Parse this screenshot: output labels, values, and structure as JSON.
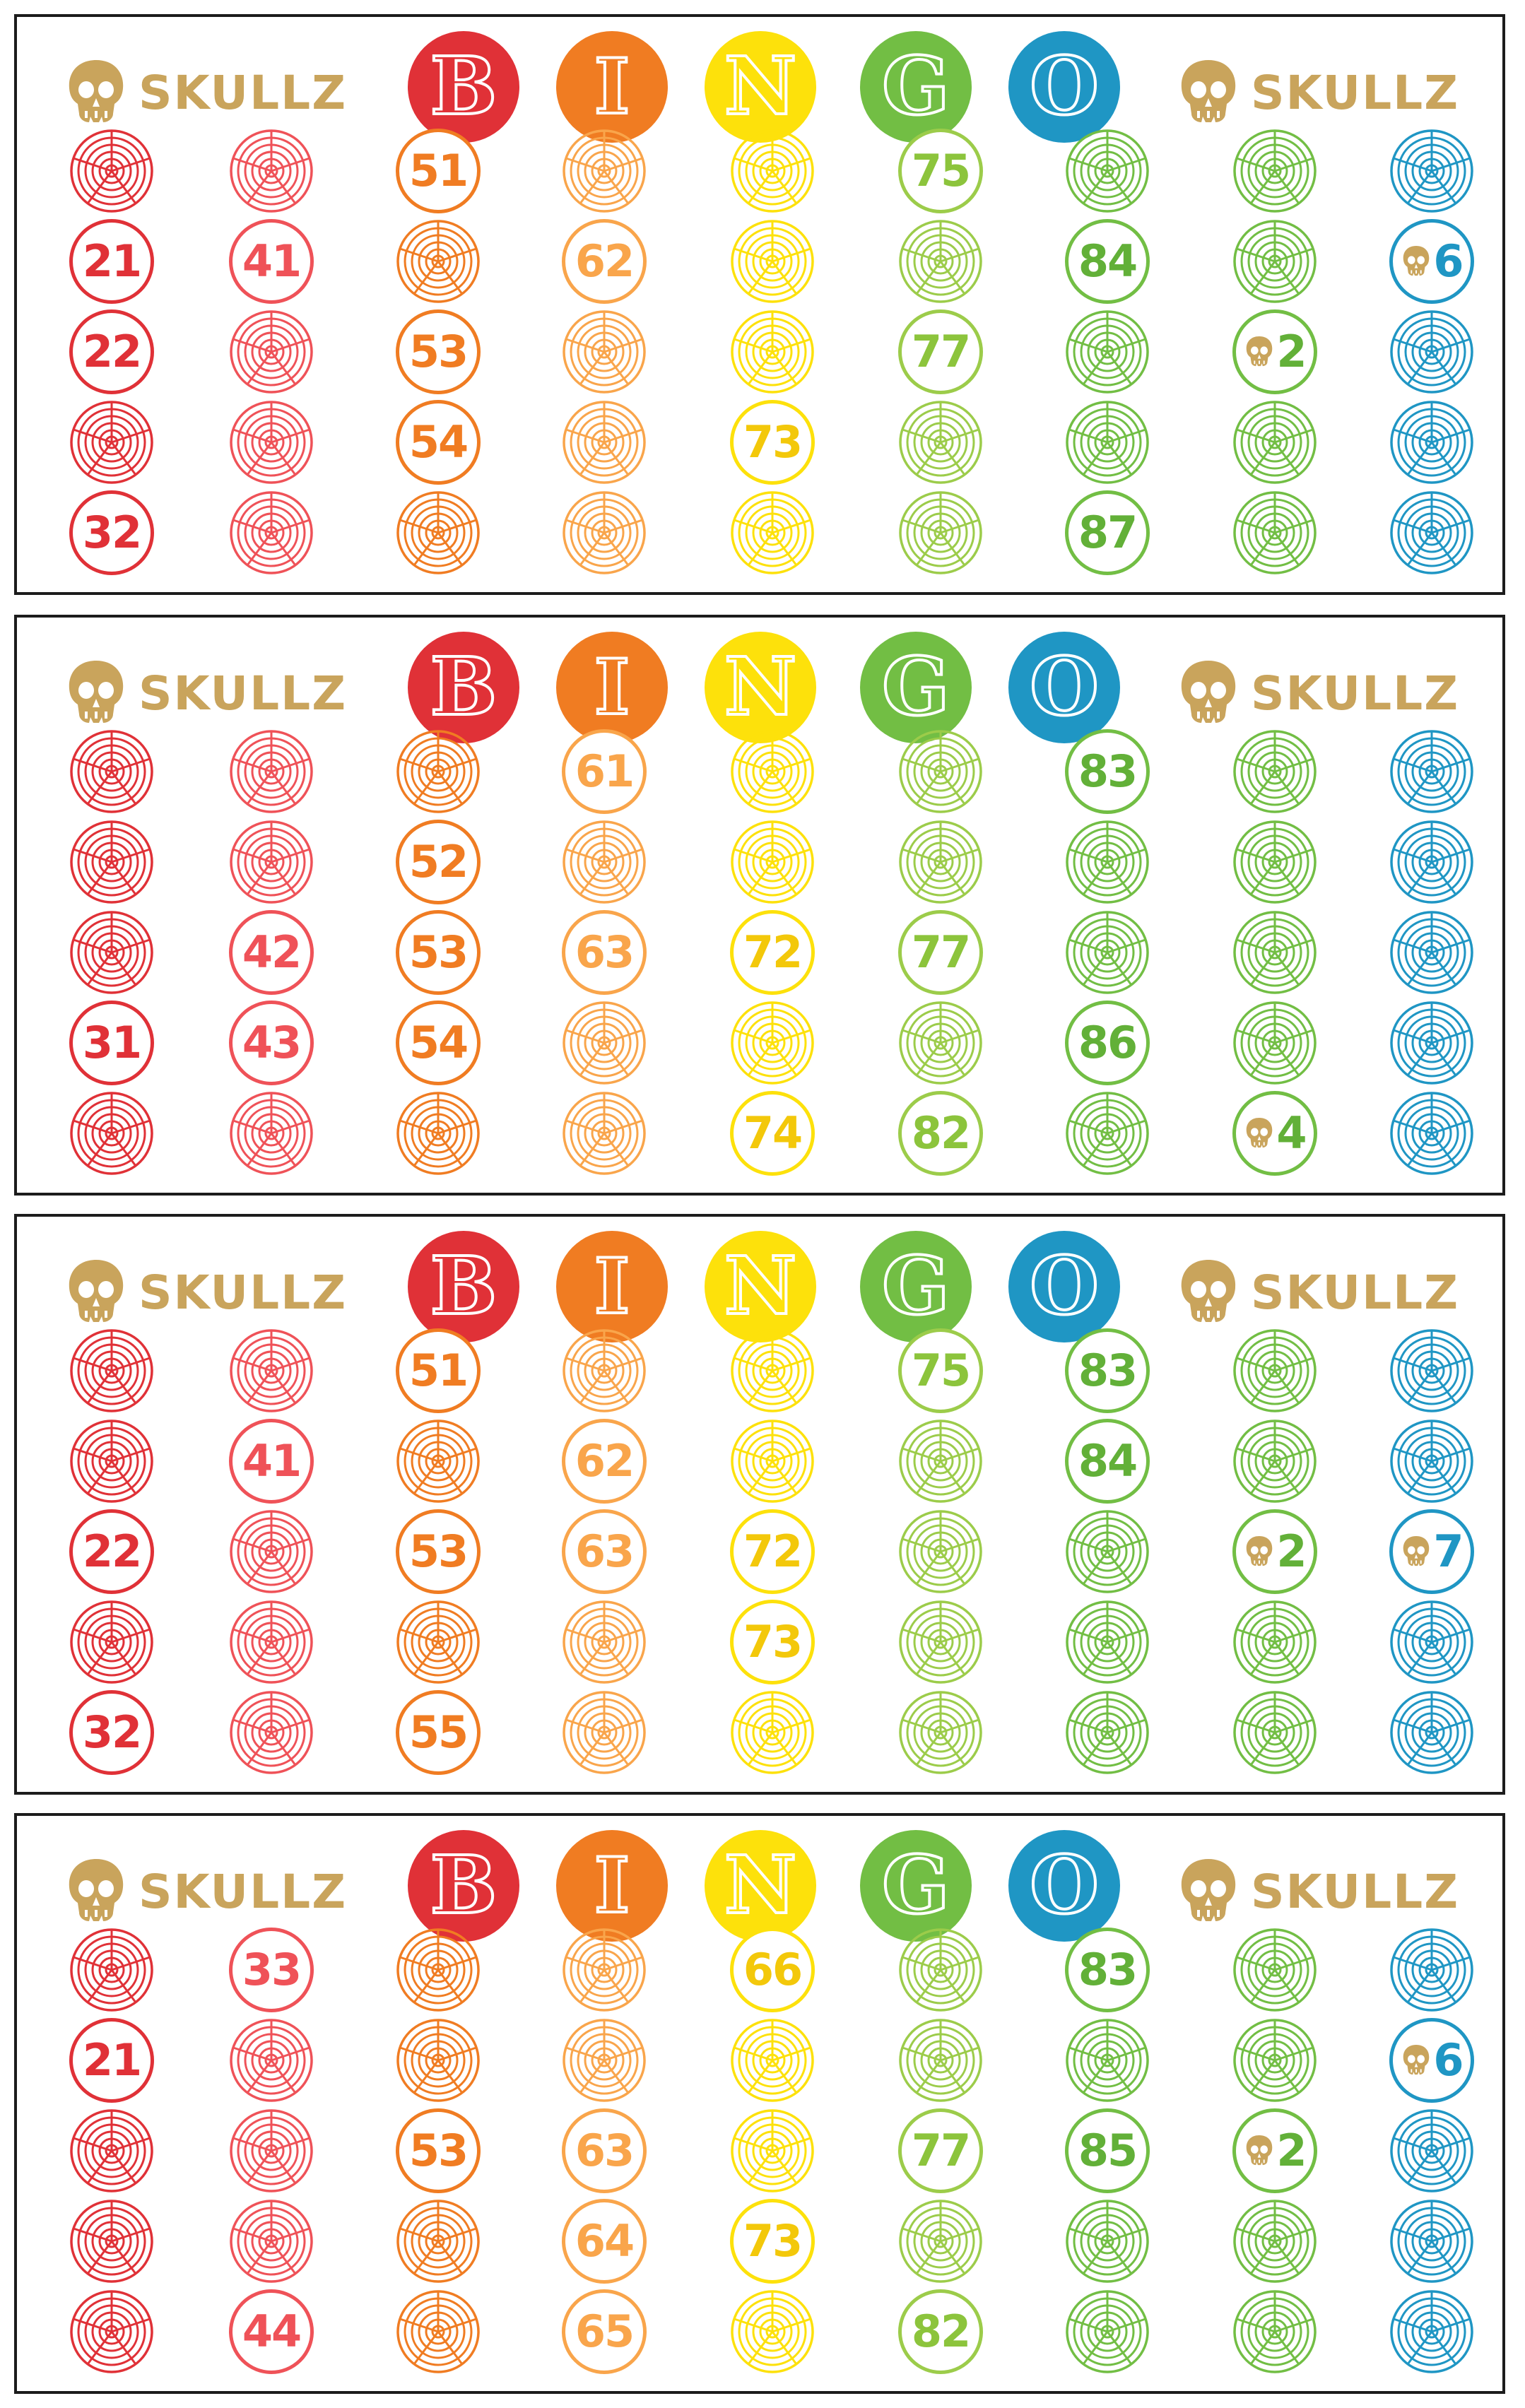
{
  "brand": "SKULLZ",
  "header_letters": [
    "B",
    "I",
    "N",
    "G",
    "O"
  ],
  "colors": {
    "B": "#e03137",
    "I": "#f07c22",
    "N": "#fde10b",
    "G": "#72be44",
    "O": "#1f96c4",
    "gold": "#c9a45c",
    "col_strokes": [
      "#e03137",
      "#ef5258",
      "#f07c22",
      "#f9a54b",
      "#fde10b",
      "#9ccc4a",
      "#72be44",
      "#72be44",
      "#1f96c4"
    ],
    "col_fills": [
      "#e03137",
      "#ef5258",
      "#f07c22",
      "#f9a54b",
      "#f3c80a",
      "#8cc43c",
      "#62b038",
      "#62b038",
      "#1f96c4"
    ]
  },
  "cards": [
    {
      "called": [
        {
          "row": 0,
          "col": 2,
          "text": "51"
        },
        {
          "row": 0,
          "col": 5,
          "text": "75"
        },
        {
          "row": 1,
          "col": 0,
          "text": "21"
        },
        {
          "row": 1,
          "col": 1,
          "text": "41"
        },
        {
          "row": 1,
          "col": 3,
          "text": "62"
        },
        {
          "row": 1,
          "col": 6,
          "text": "84"
        },
        {
          "row": 1,
          "col": 8,
          "text": "6",
          "skull": true
        },
        {
          "row": 2,
          "col": 0,
          "text": "22"
        },
        {
          "row": 2,
          "col": 2,
          "text": "53"
        },
        {
          "row": 2,
          "col": 5,
          "text": "77"
        },
        {
          "row": 2,
          "col": 7,
          "text": "2",
          "skull": true
        },
        {
          "row": 3,
          "col": 2,
          "text": "54"
        },
        {
          "row": 3,
          "col": 4,
          "text": "73"
        },
        {
          "row": 4,
          "col": 0,
          "text": "32"
        },
        {
          "row": 4,
          "col": 6,
          "text": "87"
        }
      ]
    },
    {
      "called": [
        {
          "row": 0,
          "col": 3,
          "text": "61"
        },
        {
          "row": 0,
          "col": 6,
          "text": "83"
        },
        {
          "row": 1,
          "col": 2,
          "text": "52"
        },
        {
          "row": 2,
          "col": 1,
          "text": "42"
        },
        {
          "row": 2,
          "col": 2,
          "text": "53"
        },
        {
          "row": 2,
          "col": 3,
          "text": "63"
        },
        {
          "row": 2,
          "col": 4,
          "text": "72"
        },
        {
          "row": 2,
          "col": 5,
          "text": "77"
        },
        {
          "row": 3,
          "col": 0,
          "text": "31"
        },
        {
          "row": 3,
          "col": 1,
          "text": "43"
        },
        {
          "row": 3,
          "col": 2,
          "text": "54"
        },
        {
          "row": 3,
          "col": 6,
          "text": "86"
        },
        {
          "row": 4,
          "col": 4,
          "text": "74"
        },
        {
          "row": 4,
          "col": 5,
          "text": "82"
        },
        {
          "row": 4,
          "col": 7,
          "text": "4",
          "skull": true
        }
      ]
    },
    {
      "called": [
        {
          "row": 0,
          "col": 2,
          "text": "51"
        },
        {
          "row": 0,
          "col": 5,
          "text": "75"
        },
        {
          "row": 0,
          "col": 6,
          "text": "83"
        },
        {
          "row": 1,
          "col": 1,
          "text": "41"
        },
        {
          "row": 1,
          "col": 3,
          "text": "62"
        },
        {
          "row": 1,
          "col": 6,
          "text": "84"
        },
        {
          "row": 2,
          "col": 0,
          "text": "22"
        },
        {
          "row": 2,
          "col": 2,
          "text": "53"
        },
        {
          "row": 2,
          "col": 3,
          "text": "63"
        },
        {
          "row": 2,
          "col": 4,
          "text": "72"
        },
        {
          "row": 2,
          "col": 7,
          "text": "2",
          "skull": true
        },
        {
          "row": 2,
          "col": 8,
          "text": "7",
          "skull": true
        },
        {
          "row": 3,
          "col": 4,
          "text": "73"
        },
        {
          "row": 4,
          "col": 0,
          "text": "32"
        },
        {
          "row": 4,
          "col": 2,
          "text": "55"
        }
      ]
    },
    {
      "called": [
        {
          "row": 0,
          "col": 1,
          "text": "33"
        },
        {
          "row": 0,
          "col": 4,
          "text": "66"
        },
        {
          "row": 0,
          "col": 6,
          "text": "83"
        },
        {
          "row": 1,
          "col": 0,
          "text": "21"
        },
        {
          "row": 1,
          "col": 8,
          "text": "6",
          "skull": true
        },
        {
          "row": 2,
          "col": 2,
          "text": "53"
        },
        {
          "row": 2,
          "col": 3,
          "text": "63"
        },
        {
          "row": 2,
          "col": 5,
          "text": "77"
        },
        {
          "row": 2,
          "col": 6,
          "text": "85"
        },
        {
          "row": 2,
          "col": 7,
          "text": "2",
          "skull": true
        },
        {
          "row": 3,
          "col": 3,
          "text": "64"
        },
        {
          "row": 3,
          "col": 4,
          "text": "73"
        },
        {
          "row": 4,
          "col": 1,
          "text": "44"
        },
        {
          "row": 4,
          "col": 3,
          "text": "65"
        },
        {
          "row": 4,
          "col": 5,
          "text": "82"
        }
      ]
    }
  ]
}
